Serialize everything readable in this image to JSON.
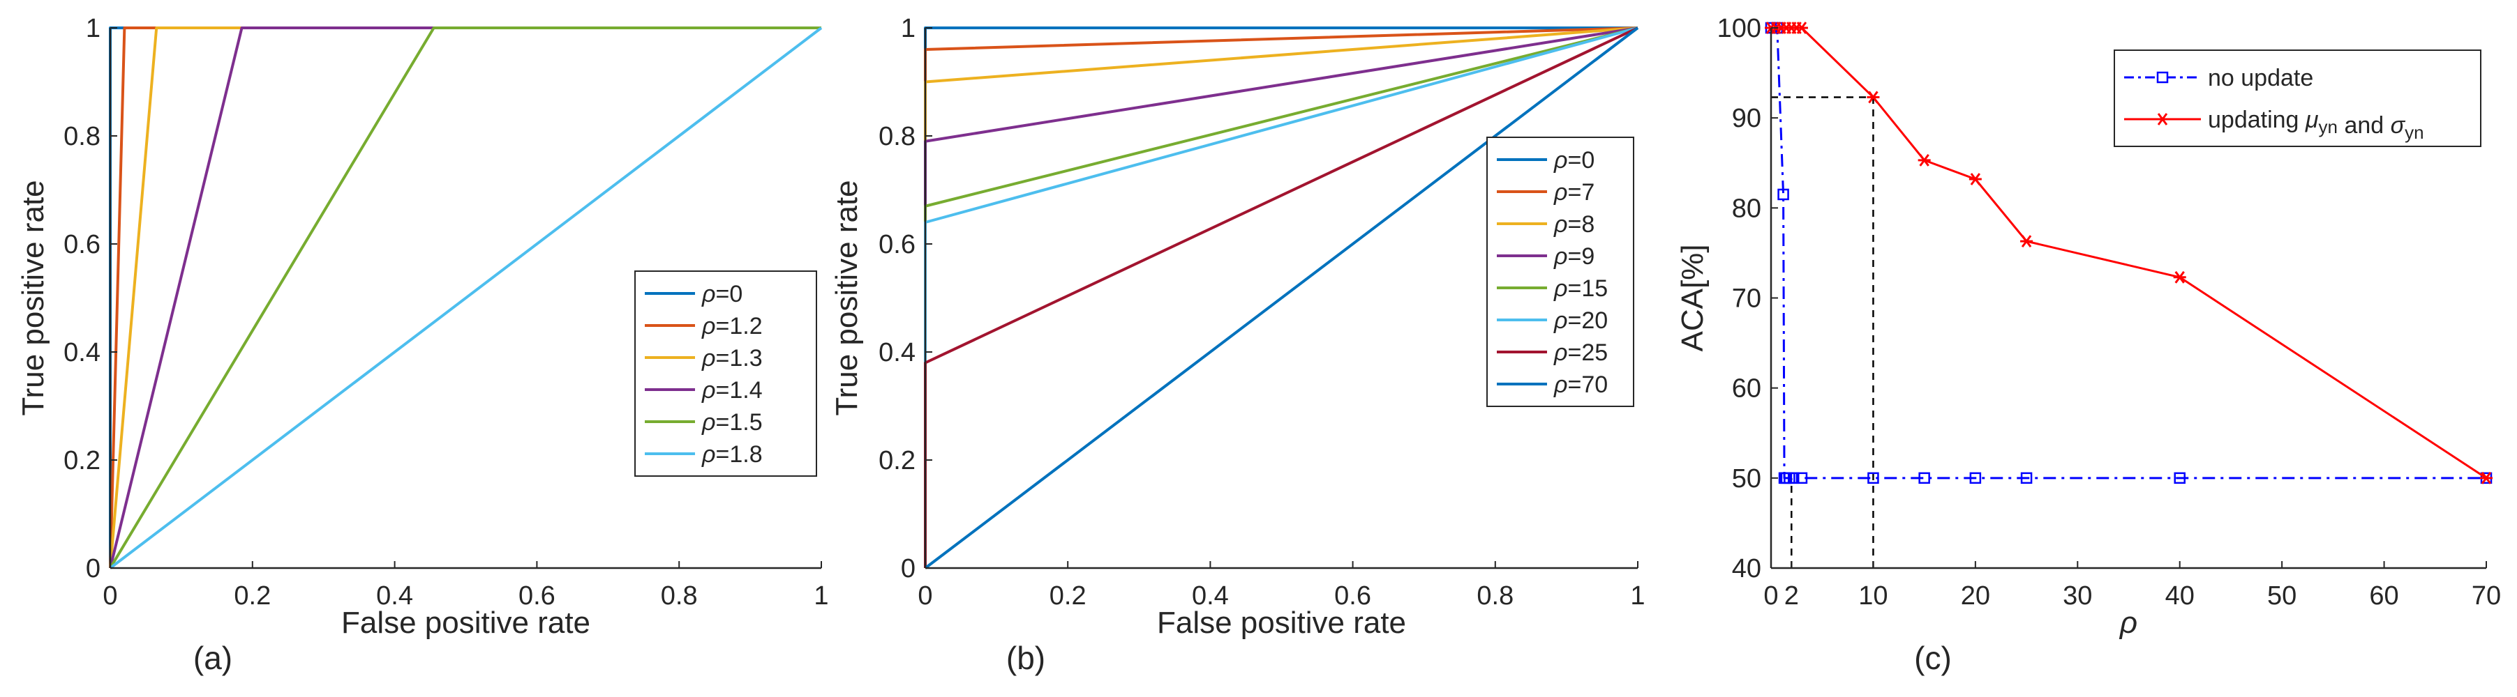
{
  "chart_data": [
    {
      "type": "line",
      "panel_label": "(a)",
      "xlabel": "False positive rate",
      "ylabel": "True positive rate",
      "xlim": [
        0,
        1
      ],
      "ylim": [
        0,
        1
      ],
      "xticks": [
        0,
        0.2,
        0.4,
        0.6,
        0.8,
        1
      ],
      "yticks": [
        0,
        0.2,
        0.4,
        0.6,
        0.8,
        1
      ],
      "xtick_labels": [
        "0",
        "0.2",
        "0.4",
        "0.6",
        "0.8",
        "1"
      ],
      "ytick_labels": [
        "0",
        "0.2",
        "0.4",
        "0.6",
        "0.8",
        "1"
      ],
      "legend_position": "right",
      "series": [
        {
          "label": "=0",
          "symbol": "ρ",
          "color": "#0072BD",
          "x": [
            0,
            0,
            1
          ],
          "y": [
            0,
            1,
            1
          ]
        },
        {
          "label": "=1.2",
          "symbol": "ρ",
          "color": "#D95319",
          "x": [
            0,
            0.02,
            1
          ],
          "y": [
            0,
            1,
            1
          ]
        },
        {
          "label": "=1.3",
          "symbol": "ρ",
          "color": "#EDB120",
          "x": [
            0,
            0.065,
            1
          ],
          "y": [
            0,
            1,
            1
          ]
        },
        {
          "label": "=1.4",
          "symbol": "ρ",
          "color": "#7E2F8E",
          "x": [
            0,
            0.185,
            1
          ],
          "y": [
            0,
            1,
            1
          ]
        },
        {
          "label": "=1.5",
          "symbol": "ρ",
          "color": "#77AC30",
          "x": [
            0,
            0.455,
            1
          ],
          "y": [
            0,
            1,
            1
          ]
        },
        {
          "label": "=1.8",
          "symbol": "ρ",
          "color": "#4DBEEE",
          "x": [
            0,
            1
          ],
          "y": [
            0,
            1
          ]
        }
      ]
    },
    {
      "type": "line",
      "panel_label": "(b)",
      "xlabel": "False positive rate",
      "ylabel": "True positive rate",
      "xlim": [
        0,
        1
      ],
      "ylim": [
        0,
        1
      ],
      "xticks": [
        0,
        0.2,
        0.4,
        0.6,
        0.8,
        1
      ],
      "yticks": [
        0,
        0.2,
        0.4,
        0.6,
        0.8,
        1
      ],
      "xtick_labels": [
        "0",
        "0.2",
        "0.4",
        "0.6",
        "0.8",
        "1"
      ],
      "ytick_labels": [
        "0",
        "0.2",
        "0.4",
        "0.6",
        "0.8",
        "1"
      ],
      "legend_position": "right",
      "series": [
        {
          "label": "=0",
          "symbol": "ρ",
          "color": "#0072BD",
          "x": [
            0,
            0,
            1
          ],
          "y": [
            0,
            1,
            1
          ]
        },
        {
          "label": "=7",
          "symbol": "ρ",
          "color": "#D95319",
          "x": [
            0,
            0,
            1
          ],
          "y": [
            0,
            0.96,
            1
          ]
        },
        {
          "label": "=8",
          "symbol": "ρ",
          "color": "#EDB120",
          "x": [
            0,
            0,
            1
          ],
          "y": [
            0,
            0.9,
            1
          ]
        },
        {
          "label": "=9",
          "symbol": "ρ",
          "color": "#7E2F8E",
          "x": [
            0,
            0,
            1
          ],
          "y": [
            0,
            0.79,
            1
          ]
        },
        {
          "label": "=15",
          "symbol": "ρ",
          "color": "#77AC30",
          "x": [
            0,
            0,
            1
          ],
          "y": [
            0,
            0.67,
            1
          ]
        },
        {
          "label": "=20",
          "symbol": "ρ",
          "color": "#4DBEEE",
          "x": [
            0,
            0,
            1
          ],
          "y": [
            0,
            0.64,
            1
          ]
        },
        {
          "label": "=25",
          "symbol": "ρ",
          "color": "#A2142F",
          "x": [
            0,
            0,
            1
          ],
          "y": [
            0,
            0.38,
            1
          ]
        },
        {
          "label": "=70",
          "symbol": "ρ",
          "color": "#0072BD",
          "x": [
            0,
            1
          ],
          "y": [
            0,
            1
          ]
        }
      ]
    },
    {
      "type": "line",
      "panel_label": "(c)",
      "xlabel": "ρ",
      "ylabel": "ACA[%]",
      "xlim": [
        0,
        70
      ],
      "ylim": [
        40,
        100
      ],
      "xticks": [
        0,
        2,
        10,
        20,
        30,
        40,
        50,
        60,
        70
      ],
      "yticks": [
        40,
        50,
        60,
        70,
        80,
        90,
        100
      ],
      "xtick_labels": [
        "0",
        "2",
        "10",
        "20",
        "30",
        "40",
        "50",
        "60",
        "70"
      ],
      "ytick_labels": [
        "40",
        "50",
        "60",
        "70",
        "80",
        "90",
        "100"
      ],
      "legend_position": "top-right",
      "series": [
        {
          "label": "no update",
          "color": "#0000FF",
          "style": "dash-dot",
          "marker": "square",
          "x": [
            0,
            0.6,
            1.2,
            1.3,
            1.4,
            1.5,
            1.8,
            2.2,
            3,
            10,
            15,
            20,
            25,
            40,
            70
          ],
          "y": [
            100,
            100,
            81.5,
            50,
            50,
            50,
            50,
            50,
            50,
            50,
            50,
            50,
            50,
            50,
            50
          ]
        },
        {
          "label_prefix": "updating ",
          "label_mu": "μ",
          "label_and": " and ",
          "label_sigma": "σ",
          "label_sub": "yn",
          "color": "#FF0000",
          "style": "solid",
          "marker": "star",
          "x": [
            0,
            0.5,
            1.0,
            1.5,
            2.0,
            2.5,
            3.0,
            10,
            15,
            20,
            25,
            40,
            70
          ],
          "y": [
            100,
            100,
            100,
            100,
            100,
            100,
            100,
            92.3,
            85.3,
            83.2,
            76.3,
            72.3,
            50
          ]
        }
      ],
      "reference_lines": [
        {
          "x": 2,
          "y_from": 40,
          "y_to": 50
        },
        {
          "x": 10,
          "y_from": 40,
          "y_to": 92.3
        },
        {
          "y": 92.3,
          "x_from": 0,
          "x_to": 10
        }
      ]
    }
  ]
}
